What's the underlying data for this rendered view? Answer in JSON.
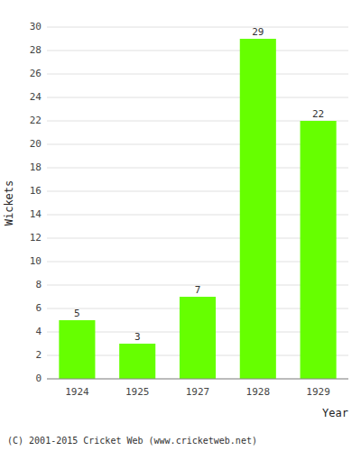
{
  "chart_data": {
    "type": "bar",
    "categories": [
      "1924",
      "1925",
      "1927",
      "1928",
      "1929"
    ],
    "values": [
      5,
      3,
      7,
      29,
      22
    ],
    "color": "#66ff00",
    "ylim": [
      0,
      30
    ],
    "yticks": [
      0,
      2,
      4,
      6,
      8,
      10,
      12,
      14,
      16,
      18,
      20,
      22,
      24,
      26,
      28,
      30
    ],
    "grid": true,
    "data_labels": true,
    "xlabel": "Year",
    "ylabel": "Wickets",
    "annotations": [
      "(C) 2001-2015 Cricket Web (www.cricketweb.net)"
    ]
  }
}
